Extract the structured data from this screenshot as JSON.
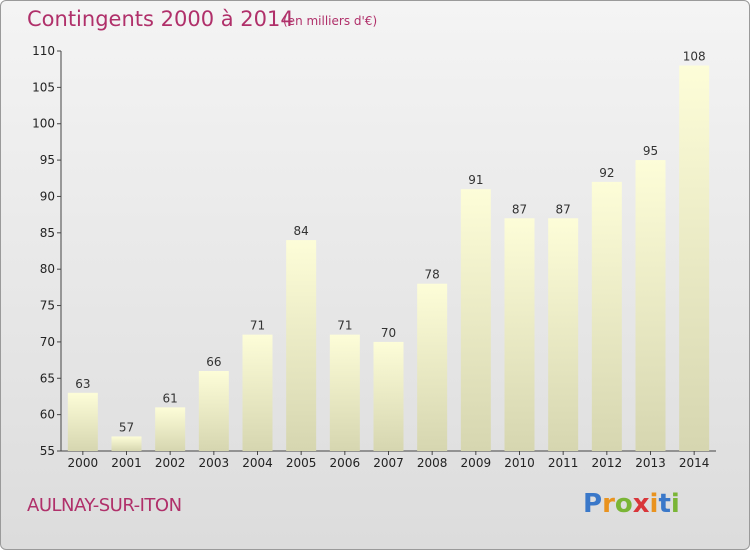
{
  "header": {
    "title": "Contingents 2000 à 2014",
    "subtitle": "(en milliers d'€)"
  },
  "footer": {
    "place": "AULNAY-SUR-ITON",
    "logo": "Proxiti"
  },
  "colors": {
    "title": "#b0306a",
    "bar_top": "#fdfdd8",
    "bar_bottom": "#d6d6b0"
  },
  "chart_data": {
    "type": "bar",
    "title": "Contingents 2000 à 2014",
    "subtitle": "(en milliers d'€)",
    "categories": [
      "2000",
      "2001",
      "2002",
      "2003",
      "2004",
      "2005",
      "2006",
      "2007",
      "2008",
      "2009",
      "2010",
      "2011",
      "2012",
      "2013",
      "2014"
    ],
    "values": [
      63,
      57,
      61,
      66,
      71,
      84,
      71,
      70,
      78,
      91,
      87,
      87,
      92,
      95,
      108
    ],
    "ylim": [
      55,
      110
    ],
    "yticks": [
      55,
      60,
      65,
      70,
      75,
      80,
      85,
      90,
      95,
      100,
      105,
      110
    ],
    "grid": false,
    "data_labels": true
  }
}
